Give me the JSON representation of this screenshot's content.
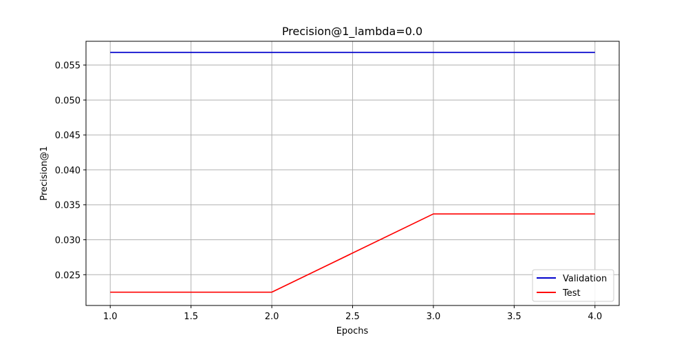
{
  "chart_data": {
    "type": "line",
    "title": "Precision@1_lambda=0.0",
    "xlabel": "Epochs",
    "ylabel": "Precision@1",
    "x": [
      1.0,
      2.0,
      3.0,
      4.0
    ],
    "xlim": [
      0.85,
      4.15
    ],
    "ylim": [
      0.0206,
      0.0584
    ],
    "xticks": [
      1.0,
      1.5,
      2.0,
      2.5,
      3.0,
      3.5,
      4.0
    ],
    "xtick_labels": [
      "1.0",
      "1.5",
      "2.0",
      "2.5",
      "3.0",
      "3.5",
      "4.0"
    ],
    "yticks": [
      0.025,
      0.03,
      0.035,
      0.04,
      0.045,
      0.05,
      0.055
    ],
    "ytick_labels": [
      "0.025",
      "0.030",
      "0.035",
      "0.040",
      "0.045",
      "0.050",
      "0.055"
    ],
    "grid": true,
    "legend_position": "lower-right",
    "series": [
      {
        "name": "Validation",
        "color": "#0000cc",
        "values": [
          0.0568,
          0.0568,
          0.0568,
          0.0568
        ]
      },
      {
        "name": "Test",
        "color": "#ff0000",
        "values": [
          0.0225,
          0.0225,
          0.0337,
          0.0337
        ]
      }
    ]
  }
}
